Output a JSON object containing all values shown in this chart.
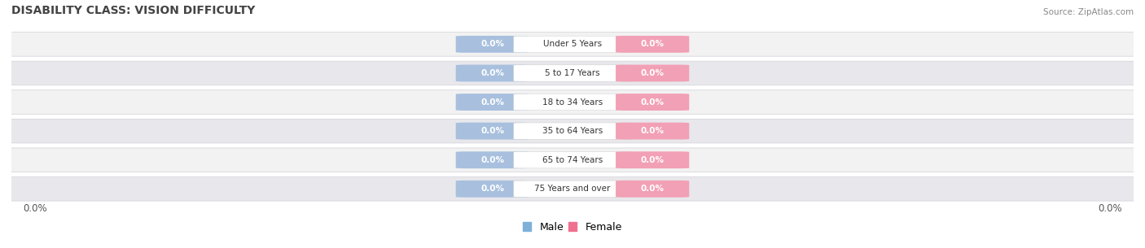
{
  "title": "DISABILITY CLASS: VISION DIFFICULTY",
  "source": "Source: ZipAtlas.com",
  "categories": [
    "Under 5 Years",
    "5 to 17 Years",
    "18 to 34 Years",
    "35 to 64 Years",
    "65 to 74 Years",
    "75 Years and over"
  ],
  "male_values": [
    0.0,
    0.0,
    0.0,
    0.0,
    0.0,
    0.0
  ],
  "female_values": [
    0.0,
    0.0,
    0.0,
    0.0,
    0.0,
    0.0
  ],
  "male_color": "#a8c0de",
  "female_color": "#f2a0b5",
  "row_light_color": "#f2f2f2",
  "row_dark_color": "#e8e8ec",
  "row_border_color": "#d0d0d8",
  "title_color": "#444444",
  "source_color": "#888888",
  "legend_male_color": "#7fb0d8",
  "legend_female_color": "#f07090",
  "x_left_label": "0.0%",
  "x_right_label": "0.0%",
  "figsize": [
    14.06,
    3.05
  ],
  "dpi": 100
}
